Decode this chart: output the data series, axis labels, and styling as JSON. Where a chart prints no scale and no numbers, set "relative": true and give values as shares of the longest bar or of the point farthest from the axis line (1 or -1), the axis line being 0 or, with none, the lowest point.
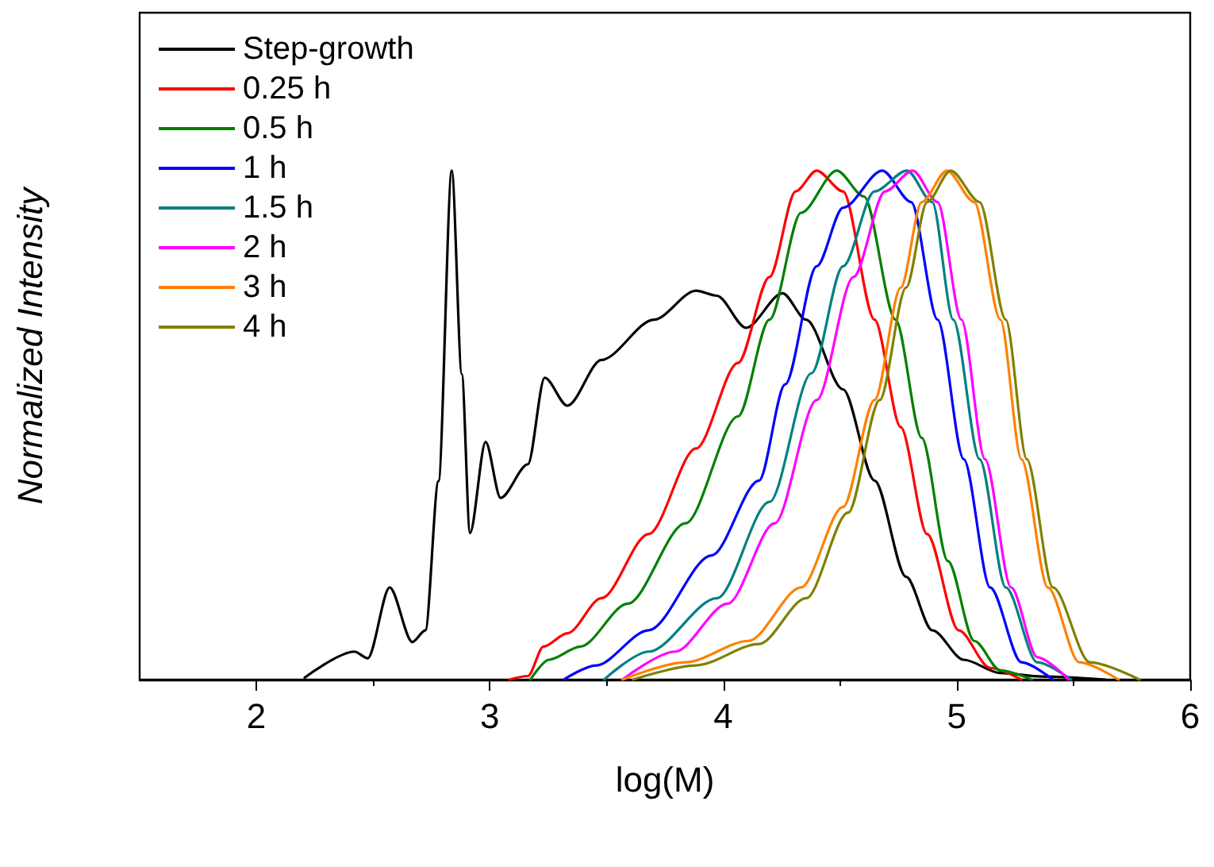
{
  "chart_data": {
    "type": "line",
    "relative": true,
    "xlabel": "log(M)",
    "ylabel": "Normalized Intensity",
    "xlim": [
      1.5,
      6
    ],
    "xticks": [
      2,
      3,
      4,
      5,
      6
    ],
    "grid": false,
    "legend": "top left",
    "marker": "none",
    "line_style": "solid",
    "series": [
      {
        "name": "Step-growth",
        "color": "#000000",
        "x": [
          2.207,
          2.42,
          2.477,
          2.571,
          2.668,
          2.724,
          2.78,
          2.837,
          2.88,
          2.915,
          2.982,
          3.046,
          3.163,
          3.235,
          3.332,
          3.478,
          3.703,
          3.883,
          3.973,
          4.097,
          4.254,
          4.355,
          4.513,
          4.648,
          4.783,
          4.895,
          5.03,
          5.187,
          5.367,
          5.637
        ],
        "values": [
          0.004,
          0.055,
          0.042,
          0.181,
          0.074,
          0.097,
          0.39,
          1.0,
          0.6,
          0.288,
          0.467,
          0.357,
          0.423,
          0.593,
          0.538,
          0.628,
          0.707,
          0.764,
          0.754,
          0.691,
          0.759,
          0.707,
          0.57,
          0.391,
          0.202,
          0.097,
          0.039,
          0.013,
          0.006,
          0
        ]
      },
      {
        "name": "0.25 h",
        "color": "#ff0000",
        "x": [
          3.084,
          3.163,
          3.23,
          3.332,
          3.478,
          3.68,
          3.883,
          4.063,
          4.198,
          4.31,
          4.4,
          4.513,
          4.648,
          4.76,
          4.873,
          5.008,
          5.143,
          5.277
        ],
        "values": [
          0,
          0.007,
          0.065,
          0.091,
          0.16,
          0.286,
          0.454,
          0.622,
          0.791,
          0.959,
          1.0,
          0.959,
          0.707,
          0.496,
          0.286,
          0.097,
          0.023,
          0
        ]
      },
      {
        "name": "0.5 h",
        "color": "#008000",
        "x": [
          3.174,
          3.253,
          3.388,
          3.59,
          3.838,
          4.063,
          4.198,
          4.333,
          4.486,
          4.603,
          4.738,
          4.85,
          4.962,
          5.075,
          5.187,
          5.322
        ],
        "values": [
          0,
          0.039,
          0.065,
          0.149,
          0.307,
          0.517,
          0.707,
          0.917,
          1.0,
          0.949,
          0.707,
          0.475,
          0.233,
          0.076,
          0.018,
          0
        ]
      },
      {
        "name": "1 h",
        "color": "#0000ff",
        "x": [
          3.316,
          3.455,
          3.68,
          3.95,
          4.153,
          4.265,
          4.4,
          4.513,
          4.681,
          4.805,
          4.918,
          5.03,
          5.143,
          5.277,
          5.412
        ],
        "values": [
          0,
          0.028,
          0.097,
          0.244,
          0.391,
          0.58,
          0.812,
          0.927,
          1.0,
          0.938,
          0.707,
          0.433,
          0.181,
          0.034,
          0
        ]
      },
      {
        "name": "1.5 h",
        "color": "#008080",
        "x": [
          3.489,
          3.68,
          3.973,
          4.198,
          4.378,
          4.513,
          4.648,
          4.787,
          4.895,
          4.985,
          5.098,
          5.21,
          5.345,
          5.49
        ],
        "values": [
          0,
          0.055,
          0.16,
          0.349,
          0.602,
          0.812,
          0.959,
          1.0,
          0.938,
          0.707,
          0.433,
          0.181,
          0.034,
          0
        ]
      },
      {
        "name": "2 h",
        "color": "#ff00ff",
        "x": [
          3.568,
          3.793,
          4.018,
          4.22,
          4.4,
          4.558,
          4.693,
          4.811,
          4.918,
          5.02,
          5.121,
          5.233,
          5.345,
          5.48
        ],
        "values": [
          0,
          0.055,
          0.149,
          0.307,
          0.549,
          0.791,
          0.959,
          1.0,
          0.938,
          0.707,
          0.433,
          0.181,
          0.044,
          0
        ]
      },
      {
        "name": "3 h",
        "color": "#ff8000",
        "x": [
          3.568,
          3.838,
          4.108,
          4.333,
          4.513,
          4.648,
          4.76,
          4.85,
          4.958,
          5.075,
          5.187,
          5.277,
          5.39,
          5.525,
          5.693
        ],
        "values": [
          0,
          0.034,
          0.076,
          0.181,
          0.339,
          0.549,
          0.77,
          0.938,
          1.0,
          0.938,
          0.707,
          0.433,
          0.181,
          0.034,
          0
        ]
      },
      {
        "name": "4 h",
        "color": "#808000",
        "x": [
          3.613,
          3.883,
          4.153,
          4.355,
          4.535,
          4.67,
          4.783,
          4.873,
          4.974,
          5.098,
          5.21,
          5.3,
          5.412,
          5.57,
          5.783
        ],
        "values": [
          0,
          0.028,
          0.07,
          0.16,
          0.328,
          0.549,
          0.77,
          0.938,
          1.0,
          0.938,
          0.707,
          0.433,
          0.181,
          0.034,
          0
        ]
      }
    ]
  }
}
